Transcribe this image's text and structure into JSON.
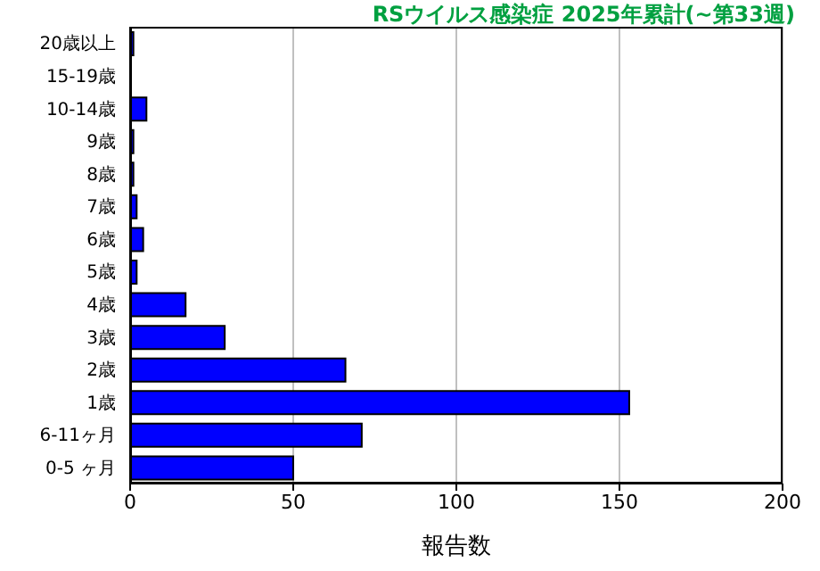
{
  "chart_data": {
    "type": "bar",
    "orientation": "horizontal",
    "title": "RSウイルス感染症 2025年累計(~第33週)",
    "xlabel": "報告数",
    "categories": [
      "20歳以上",
      "15-19歳",
      "10-14歳",
      "9歳",
      "8歳",
      "7歳",
      "6歳",
      "5歳",
      "4歳",
      "3歳",
      "2歳",
      "1歳",
      "6-11ヶ月",
      "0-5 ヶ月"
    ],
    "values": [
      1,
      0,
      5,
      1,
      1,
      2,
      4,
      2,
      17,
      29,
      66,
      153,
      71,
      50
    ],
    "color": "#0000ff",
    "xlim": [
      0,
      200
    ],
    "xticks": [
      0,
      50,
      100,
      150,
      200
    ],
    "grid": "x"
  }
}
